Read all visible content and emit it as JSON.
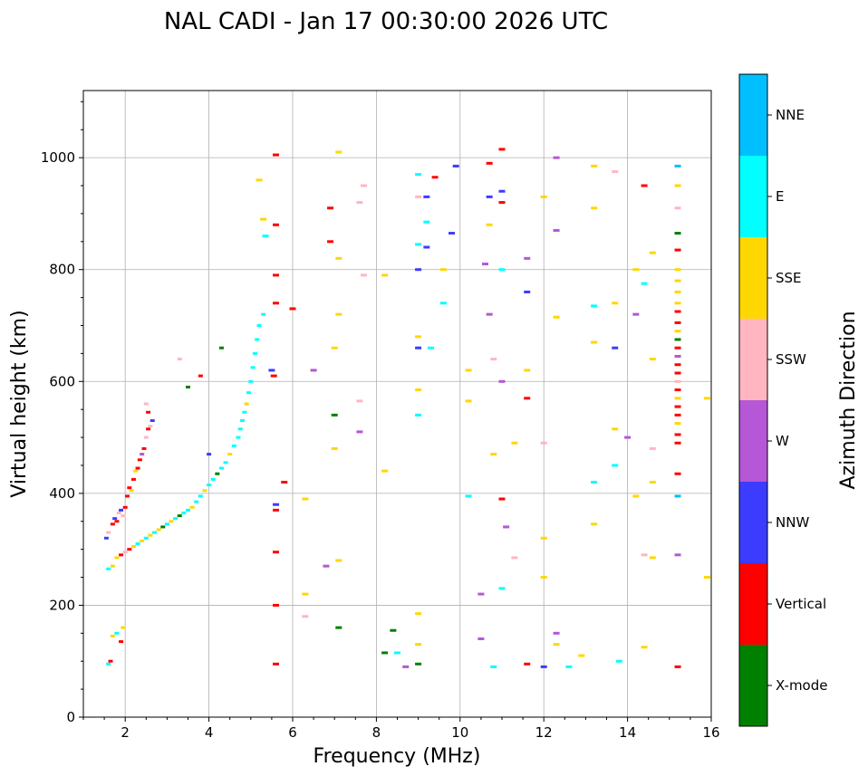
{
  "chart_data": {
    "type": "scatter",
    "title": "NAL CADI - Jan 17 00:30:00 2026 UTC",
    "xlabel": "Frequency (MHz)",
    "ylabel": "Virtual height (km)",
    "xlim": [
      1,
      16
    ],
    "ylim": [
      0,
      1120
    ],
    "xticks": [
      2,
      4,
      6,
      8,
      10,
      12,
      14,
      16
    ],
    "yticks": [
      0,
      200,
      400,
      600,
      800,
      1000
    ],
    "grid": true,
    "colorbar": {
      "label": "Azimuth Direction",
      "categories": [
        {
          "name": "X-mode",
          "color": "#008000"
        },
        {
          "name": "Vertical",
          "color": "#ff0000"
        },
        {
          "name": "NNW",
          "color": "#3c3cff"
        },
        {
          "name": "W",
          "color": "#b557d6"
        },
        {
          "name": "SSW",
          "color": "#ffb6c1"
        },
        {
          "name": "SSE",
          "color": "#ffd700"
        },
        {
          "name": "E",
          "color": "#00ffff"
        },
        {
          "name": "NNE",
          "color": "#00bfff"
        }
      ]
    },
    "series": [
      {
        "name": "F-trace (upper)",
        "points": [
          [
            1.55,
            320,
            "NNW"
          ],
          [
            1.6,
            330,
            "SSW"
          ],
          [
            1.7,
            345,
            "Vertical"
          ],
          [
            1.75,
            355,
            "NNW"
          ],
          [
            1.8,
            350,
            "Vertical"
          ],
          [
            1.85,
            365,
            "SSW"
          ],
          [
            1.9,
            370,
            "NNW"
          ],
          [
            1.95,
            360,
            "SSW"
          ],
          [
            2.0,
            375,
            "Vertical"
          ],
          [
            2.05,
            395,
            "Vertical"
          ],
          [
            2.1,
            410,
            "Vertical"
          ],
          [
            2.15,
            405,
            "SSE"
          ],
          [
            2.2,
            425,
            "Vertical"
          ],
          [
            2.25,
            440,
            "SSE"
          ],
          [
            2.3,
            445,
            "Vertical"
          ],
          [
            2.35,
            460,
            "Vertical"
          ],
          [
            2.4,
            470,
            "W"
          ],
          [
            2.45,
            480,
            "Vertical"
          ],
          [
            2.5,
            500,
            "SSW"
          ],
          [
            2.55,
            515,
            "Vertical"
          ],
          [
            2.6,
            520,
            "SSW"
          ],
          [
            2.65,
            530,
            "NNW"
          ],
          [
            2.55,
            545,
            "Vertical"
          ],
          [
            2.5,
            560,
            "SSW"
          ]
        ]
      },
      {
        "name": "F-trace (lower)",
        "points": [
          [
            1.6,
            265,
            "E"
          ],
          [
            1.7,
            270,
            "SSE"
          ],
          [
            1.8,
            285,
            "SSE"
          ],
          [
            1.9,
            290,
            "Vertical"
          ],
          [
            2.0,
            295,
            "SSW"
          ],
          [
            2.1,
            300,
            "Vertical"
          ],
          [
            2.2,
            305,
            "SSE"
          ],
          [
            2.3,
            310,
            "E"
          ],
          [
            2.4,
            315,
            "SSE"
          ],
          [
            2.5,
            320,
            "E"
          ],
          [
            2.6,
            325,
            "SSE"
          ],
          [
            2.7,
            330,
            "E"
          ],
          [
            2.8,
            335,
            "SSE"
          ],
          [
            2.9,
            340,
            "X-mode"
          ],
          [
            3.0,
            345,
            "E"
          ],
          [
            3.1,
            350,
            "SSE"
          ],
          [
            3.2,
            355,
            "E"
          ],
          [
            3.3,
            360,
            "X-mode"
          ],
          [
            3.4,
            365,
            "E"
          ],
          [
            3.5,
            370,
            "E"
          ],
          [
            3.6,
            375,
            "SSE"
          ],
          [
            3.7,
            385,
            "E"
          ],
          [
            3.8,
            395,
            "E"
          ],
          [
            3.9,
            405,
            "SSE"
          ],
          [
            4.0,
            415,
            "E"
          ],
          [
            4.1,
            425,
            "E"
          ],
          [
            4.2,
            435,
            "X-mode"
          ],
          [
            4.3,
            445,
            "E"
          ],
          [
            4.4,
            455,
            "E"
          ],
          [
            4.5,
            470,
            "SSE"
          ],
          [
            4.6,
            485,
            "E"
          ],
          [
            4.7,
            500,
            "E"
          ],
          [
            4.75,
            515,
            "E"
          ],
          [
            4.8,
            530,
            "E"
          ],
          [
            4.85,
            545,
            "E"
          ],
          [
            4.9,
            560,
            "SSE"
          ],
          [
            4.95,
            580,
            "E"
          ],
          [
            5.0,
            600,
            "E"
          ],
          [
            5.05,
            625,
            "E"
          ],
          [
            5.1,
            650,
            "E"
          ],
          [
            5.15,
            675,
            "E"
          ],
          [
            5.2,
            700,
            "E"
          ],
          [
            5.3,
            720,
            "E"
          ]
        ]
      },
      {
        "name": "E-region / low echoes",
        "points": [
          [
            1.6,
            95,
            "E"
          ],
          [
            1.65,
            100,
            "Vertical"
          ],
          [
            1.7,
            145,
            "SSE"
          ],
          [
            1.8,
            150,
            "E"
          ],
          [
            1.95,
            160,
            "SSE"
          ],
          [
            1.9,
            135,
            "Vertical"
          ],
          [
            3.3,
            640,
            "SSW"
          ],
          [
            3.5,
            590,
            "X-mode"
          ],
          [
            3.8,
            610,
            "Vertical"
          ],
          [
            4.3,
            660,
            "X-mode"
          ],
          [
            4.0,
            470,
            "NNW"
          ]
        ]
      },
      {
        "name": "Scattered echoes",
        "points": [
          [
            5.2,
            960,
            "SSE"
          ],
          [
            5.3,
            890,
            "SSE"
          ],
          [
            5.35,
            860,
            "E"
          ],
          [
            5.5,
            620,
            "NNW"
          ],
          [
            5.55,
            610,
            "Vertical"
          ],
          [
            5.6,
            1005,
            "Vertical"
          ],
          [
            5.6,
            880,
            "Vertical"
          ],
          [
            5.6,
            790,
            "Vertical"
          ],
          [
            5.6,
            740,
            "Vertical"
          ],
          [
            5.6,
            380,
            "NNW"
          ],
          [
            5.6,
            370,
            "Vertical"
          ],
          [
            5.6,
            295,
            "Vertical"
          ],
          [
            5.6,
            200,
            "Vertical"
          ],
          [
            5.6,
            95,
            "Vertical"
          ],
          [
            5.8,
            420,
            "Vertical"
          ],
          [
            6.0,
            730,
            "Vertical"
          ],
          [
            6.3,
            390,
            "SSE"
          ],
          [
            6.3,
            220,
            "SSE"
          ],
          [
            6.3,
            180,
            "SSW"
          ],
          [
            6.5,
            620,
            "W"
          ],
          [
            6.8,
            270,
            "W"
          ],
          [
            6.9,
            910,
            "Vertical"
          ],
          [
            6.9,
            850,
            "Vertical"
          ],
          [
            7.0,
            540,
            "X-mode"
          ],
          [
            7.0,
            480,
            "SSE"
          ],
          [
            7.0,
            660,
            "SSE"
          ],
          [
            7.1,
            1010,
            "SSE"
          ],
          [
            7.1,
            820,
            "SSE"
          ],
          [
            7.1,
            720,
            "SSE"
          ],
          [
            7.1,
            280,
            "SSE"
          ],
          [
            7.1,
            160,
            "X-mode"
          ],
          [
            7.6,
            920,
            "SSW"
          ],
          [
            7.7,
            950,
            "SSW"
          ],
          [
            7.7,
            790,
            "SSW"
          ],
          [
            7.6,
            565,
            "SSW"
          ],
          [
            7.6,
            510,
            "W"
          ],
          [
            8.2,
            790,
            "SSE"
          ],
          [
            8.2,
            440,
            "SSE"
          ],
          [
            8.2,
            115,
            "X-mode"
          ],
          [
            8.4,
            155,
            "X-mode"
          ],
          [
            8.5,
            115,
            "E"
          ],
          [
            8.7,
            90,
            "W"
          ],
          [
            9.0,
            970,
            "E"
          ],
          [
            9.0,
            930,
            "SSW"
          ],
          [
            9.0,
            845,
            "E"
          ],
          [
            9.0,
            800,
            "NNW"
          ],
          [
            9.0,
            680,
            "SSE"
          ],
          [
            9.0,
            660,
            "NNW"
          ],
          [
            9.0,
            585,
            "SSE"
          ],
          [
            9.0,
            540,
            "E"
          ],
          [
            9.0,
            185,
            "SSE"
          ],
          [
            9.0,
            130,
            "SSE"
          ],
          [
            9.0,
            95,
            "X-mode"
          ],
          [
            9.2,
            930,
            "NNW"
          ],
          [
            9.2,
            840,
            "NNW"
          ],
          [
            9.2,
            885,
            "E"
          ],
          [
            9.3,
            660,
            "E"
          ],
          [
            9.4,
            965,
            "Vertical"
          ],
          [
            9.6,
            800,
            "SSE"
          ],
          [
            9.6,
            740,
            "E"
          ],
          [
            9.8,
            865,
            "NNW"
          ],
          [
            9.9,
            985,
            "NNW"
          ],
          [
            10.2,
            620,
            "SSE"
          ],
          [
            10.2,
            565,
            "SSE"
          ],
          [
            10.2,
            395,
            "E"
          ],
          [
            10.5,
            220,
            "W"
          ],
          [
            10.5,
            140,
            "W"
          ],
          [
            10.6,
            810,
            "W"
          ],
          [
            10.7,
            990,
            "Vertical"
          ],
          [
            10.7,
            930,
            "NNW"
          ],
          [
            10.7,
            880,
            "SSE"
          ],
          [
            10.7,
            720,
            "W"
          ],
          [
            10.8,
            640,
            "SSW"
          ],
          [
            10.8,
            470,
            "SSE"
          ],
          [
            10.8,
            90,
            "E"
          ],
          [
            11.0,
            1015,
            "Vertical"
          ],
          [
            11.0,
            940,
            "NNW"
          ],
          [
            11.0,
            920,
            "Vertical"
          ],
          [
            11.0,
            800,
            "E"
          ],
          [
            11.0,
            600,
            "W"
          ],
          [
            11.0,
            390,
            "Vertical"
          ],
          [
            11.0,
            230,
            "E"
          ],
          [
            11.1,
            340,
            "W"
          ],
          [
            11.3,
            490,
            "SSE"
          ],
          [
            11.3,
            285,
            "SSW"
          ],
          [
            11.6,
            820,
            "W"
          ],
          [
            11.6,
            760,
            "NNW"
          ],
          [
            11.6,
            620,
            "SSE"
          ],
          [
            11.6,
            570,
            "Vertical"
          ],
          [
            11.6,
            95,
            "Vertical"
          ],
          [
            12.0,
            930,
            "SSE"
          ],
          [
            12.0,
            490,
            "SSW"
          ],
          [
            12.0,
            320,
            "SSE"
          ],
          [
            12.0,
            250,
            "SSE"
          ],
          [
            12.0,
            90,
            "NNW"
          ],
          [
            12.3,
            1000,
            "W"
          ],
          [
            12.3,
            870,
            "W"
          ],
          [
            12.3,
            715,
            "SSE"
          ],
          [
            12.3,
            150,
            "W"
          ],
          [
            12.3,
            130,
            "SSE"
          ],
          [
            12.6,
            90,
            "E"
          ],
          [
            12.9,
            110,
            "SSE"
          ],
          [
            13.2,
            985,
            "SSE"
          ],
          [
            13.2,
            910,
            "SSE"
          ],
          [
            13.2,
            735,
            "E"
          ],
          [
            13.2,
            670,
            "SSE"
          ],
          [
            13.2,
            420,
            "E"
          ],
          [
            13.2,
            345,
            "SSE"
          ],
          [
            13.7,
            975,
            "SSW"
          ],
          [
            13.7,
            740,
            "SSE"
          ],
          [
            13.7,
            660,
            "NNW"
          ],
          [
            13.7,
            515,
            "SSE"
          ],
          [
            13.7,
            450,
            "E"
          ],
          [
            13.8,
            100,
            "E"
          ],
          [
            14.0,
            500,
            "W"
          ],
          [
            14.2,
            800,
            "SSE"
          ],
          [
            14.2,
            720,
            "W"
          ],
          [
            14.2,
            395,
            "SSE"
          ],
          [
            14.4,
            950,
            "Vertical"
          ],
          [
            14.4,
            775,
            "E"
          ],
          [
            14.4,
            290,
            "SSW"
          ],
          [
            14.4,
            125,
            "SSE"
          ],
          [
            14.6,
            830,
            "SSE"
          ],
          [
            14.6,
            640,
            "SSE"
          ],
          [
            14.6,
            480,
            "SSW"
          ],
          [
            14.6,
            420,
            "SSE"
          ],
          [
            14.6,
            285,
            "SSE"
          ],
          [
            15.2,
            985,
            "NNE"
          ],
          [
            15.2,
            950,
            "SSE"
          ],
          [
            15.2,
            910,
            "SSW"
          ],
          [
            15.2,
            865,
            "X-mode"
          ],
          [
            15.2,
            835,
            "Vertical"
          ],
          [
            15.2,
            800,
            "SSE"
          ],
          [
            15.2,
            780,
            "SSE"
          ],
          [
            15.2,
            760,
            "SSE"
          ],
          [
            15.2,
            740,
            "SSE"
          ],
          [
            15.2,
            725,
            "Vertical"
          ],
          [
            15.2,
            705,
            "Vertical"
          ],
          [
            15.2,
            690,
            "SSE"
          ],
          [
            15.2,
            675,
            "X-mode"
          ],
          [
            15.2,
            660,
            "Vertical"
          ],
          [
            15.2,
            645,
            "W"
          ],
          [
            15.2,
            630,
            "Vertical"
          ],
          [
            15.2,
            615,
            "Vertical"
          ],
          [
            15.2,
            600,
            "SSW"
          ],
          [
            15.2,
            585,
            "Vertical"
          ],
          [
            15.2,
            570,
            "SSE"
          ],
          [
            15.2,
            555,
            "Vertical"
          ],
          [
            15.2,
            540,
            "Vertical"
          ],
          [
            15.2,
            525,
            "SSE"
          ],
          [
            15.2,
            505,
            "Vertical"
          ],
          [
            15.2,
            490,
            "Vertical"
          ],
          [
            15.2,
            435,
            "Vertical"
          ],
          [
            15.2,
            395,
            "NNE"
          ],
          [
            15.2,
            290,
            "W"
          ],
          [
            15.2,
            90,
            "Vertical"
          ],
          [
            15.9,
            570,
            "SSE"
          ],
          [
            15.9,
            250,
            "SSE"
          ]
        ]
      }
    ]
  }
}
